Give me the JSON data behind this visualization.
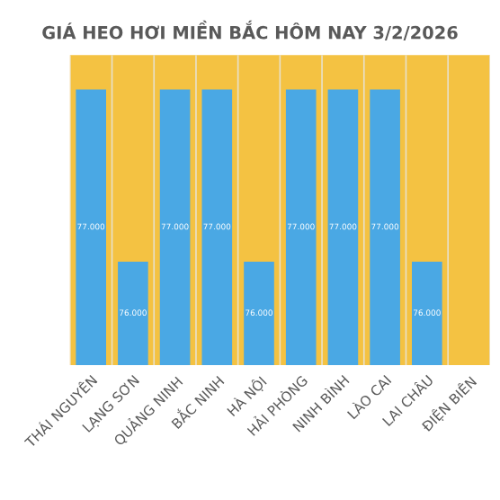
{
  "chart_data": {
    "type": "bar",
    "title": "GIÁ HEO HƠI MIỀN BẮC HÔM NAY 3/2/2026",
    "categories": [
      "THÁI NGUYÊN",
      "LẠNG SƠN",
      "QUẢNG NINH",
      "BẮC NINH",
      "HÀ NỘI",
      "HẢI PHÒNG",
      "NINH BÌNH",
      "LÀO CAI",
      "LAI CHÂU",
      "ĐIỆN BIÊN"
    ],
    "values": [
      77000,
      76000,
      77000,
      77000,
      76000,
      77000,
      77000,
      77000,
      76000,
      null
    ],
    "value_labels": [
      "77.000",
      "76.000",
      "77.000",
      "77.000",
      "76.000",
      "77.000",
      "77.000",
      "77.000",
      "76.000",
      null
    ],
    "color": "#4aa8e4",
    "ylim": [
      75400,
      77200
    ],
    "tick_labels": "x"
  }
}
